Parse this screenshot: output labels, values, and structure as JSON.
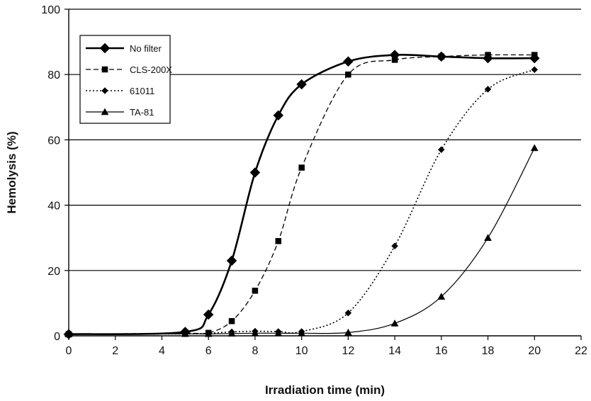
{
  "chart_data": {
    "type": "line",
    "title": "",
    "xlabel": "Irradiation time (min)",
    "ylabel": "Hemolysis (%)",
    "xlim": [
      0,
      22
    ],
    "ylim": [
      0,
      100
    ],
    "xticks": [
      "0",
      "2",
      "4",
      "6",
      "8",
      "10",
      "12",
      "14",
      "16",
      "18",
      "20",
      "22"
    ],
    "yticks": [
      "0",
      "20",
      "40",
      "60",
      "80",
      "100"
    ],
    "grid": "horizontal",
    "legend_position": "top-left",
    "series": [
      {
        "name": "No filter",
        "marker": "diamond-large",
        "line_style": "solid-thick",
        "x": [
          0,
          5,
          6,
          7,
          8,
          9,
          10,
          12,
          14,
          16,
          18,
          20
        ],
        "y": [
          0.5,
          1.2,
          6.5,
          23,
          50,
          67.5,
          77,
          84,
          86,
          85.5,
          85,
          85
        ]
      },
      {
        "name": "CLS-200X",
        "marker": "square",
        "line_style": "dashed",
        "x": [
          0,
          5,
          6,
          7,
          8,
          9,
          10,
          12,
          14,
          16,
          18,
          20
        ],
        "y": [
          0.5,
          0.8,
          0.9,
          4.5,
          13.8,
          29,
          51.5,
          80,
          84.5,
          85.5,
          86,
          86
        ]
      },
      {
        "name": "61011",
        "marker": "diamond-small",
        "line_style": "dotted",
        "x": [
          0,
          5,
          6,
          7,
          8,
          9,
          10,
          12,
          14,
          16,
          18,
          20
        ],
        "y": [
          0.5,
          0.6,
          0.8,
          1.2,
          1.4,
          1.3,
          1.3,
          7,
          27.5,
          57,
          75.5,
          81.5
        ]
      },
      {
        "name": "TA-81",
        "marker": "triangle",
        "line_style": "solid-thin",
        "x": [
          0,
          5,
          6,
          7,
          8,
          9,
          10,
          12,
          14,
          16,
          18,
          20
        ],
        "y": [
          0.5,
          0.6,
          0.6,
          0.7,
          0.8,
          0.8,
          0.8,
          1,
          3.8,
          12,
          30,
          57.5
        ]
      }
    ]
  }
}
